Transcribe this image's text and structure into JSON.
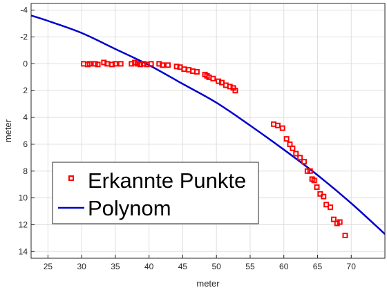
{
  "chart_data": {
    "type": "scatter",
    "title": "",
    "xlabel": "meter",
    "ylabel": "meter",
    "xlim": [
      22.5,
      75
    ],
    "ylim": [
      -4.5,
      14.5
    ],
    "y_reversed": true,
    "grid": true,
    "legend_position": "lower-left",
    "xticks": [
      25,
      30,
      35,
      40,
      45,
      50,
      55,
      60,
      65,
      70
    ],
    "yticks": [
      -4,
      -2,
      0,
      2,
      4,
      6,
      8,
      10,
      12,
      14
    ],
    "series": [
      {
        "name": "Erkannte Punkte",
        "kind": "scatter",
        "marker": "square",
        "color": "#ff0000",
        "x": [
          30.3,
          30.9,
          31.2,
          32.0,
          32.4,
          33.3,
          33.8,
          34.5,
          35.0,
          35.8,
          37.4,
          37.9,
          38.3,
          38.7,
          39.2,
          39.7,
          40.3,
          41.5,
          42.0,
          42.8,
          44.1,
          44.6,
          45.2,
          45.9,
          46.5,
          47.1,
          48.3,
          48.6,
          48.9,
          49.5,
          50.3,
          50.8,
          51.4,
          52.0,
          52.5,
          52.8,
          58.5,
          59.1,
          59.8,
          60.4,
          60.9,
          61.3,
          61.8,
          62.4,
          63.0,
          63.5,
          63.9,
          64.2,
          64.5,
          64.9,
          65.4,
          65.9,
          66.3,
          66.9,
          67.4,
          67.9,
          68.3,
          69.1
        ],
        "y": [
          0.0,
          0.05,
          0.0,
          0.0,
          0.05,
          -0.1,
          0.0,
          0.05,
          0.0,
          0.0,
          0.0,
          -0.1,
          0.0,
          0.05,
          0.0,
          0.05,
          0.0,
          0.0,
          0.1,
          0.1,
          0.2,
          0.25,
          0.4,
          0.45,
          0.55,
          0.6,
          0.8,
          0.9,
          1.0,
          1.1,
          1.3,
          1.4,
          1.6,
          1.7,
          1.8,
          2.0,
          4.5,
          4.6,
          4.8,
          5.6,
          6.0,
          6.3,
          6.7,
          7.0,
          7.3,
          8.0,
          8.0,
          8.6,
          8.7,
          9.2,
          9.7,
          9.9,
          10.5,
          10.7,
          11.6,
          11.9,
          11.8,
          12.8
        ]
      },
      {
        "name": "Polynom",
        "kind": "line",
        "color": "#0000cc",
        "x": [
          22.5,
          25,
          30,
          35,
          40,
          45,
          50,
          55,
          60,
          65,
          70,
          75
        ],
        "y": [
          -3.6,
          -3.2,
          -2.3,
          -1.1,
          0.1,
          1.5,
          2.9,
          4.6,
          6.4,
          8.3,
          10.4,
          12.7
        ]
      }
    ]
  }
}
